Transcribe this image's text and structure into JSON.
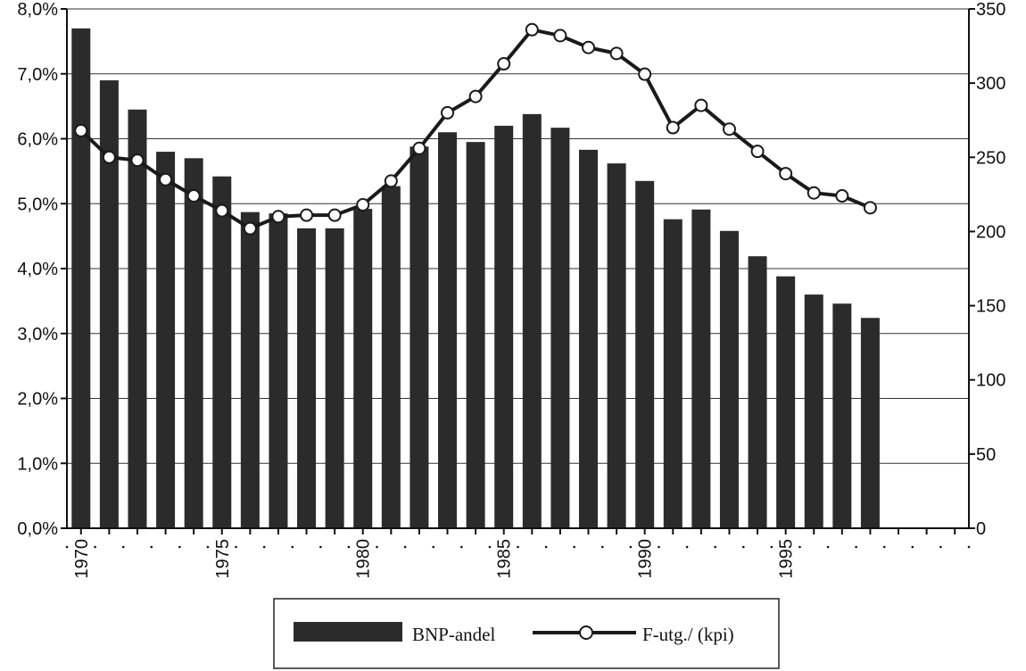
{
  "chart_data": {
    "type": "bar+line",
    "x": [
      1970,
      1971,
      1972,
      1973,
      1974,
      1975,
      1976,
      1977,
      1978,
      1979,
      1980,
      1981,
      1982,
      1983,
      1984,
      1985,
      1986,
      1987,
      1988,
      1989,
      1990,
      1991,
      1992,
      1993,
      1994,
      1995,
      1996,
      1997,
      1998,
      1999,
      2000,
      2001
    ],
    "x_tick_labels": [
      "1970",
      "1975",
      "1980",
      "1985",
      "1990",
      "1995"
    ],
    "series": [
      {
        "name": "BNP-andel",
        "kind": "bar",
        "axis": "left",
        "values": [
          7.7,
          6.9,
          6.45,
          5.8,
          5.7,
          5.42,
          4.87,
          4.85,
          4.62,
          4.62,
          4.92,
          5.27,
          5.88,
          6.1,
          5.95,
          6.2,
          6.38,
          6.17,
          5.83,
          5.62,
          5.35,
          4.76,
          4.91,
          4.58,
          4.19,
          3.88,
          3.6,
          3.46,
          3.24,
          null,
          null,
          null
        ]
      },
      {
        "name": "F-utg./ (kpi)",
        "kind": "line",
        "axis": "right",
        "values": [
          268,
          250,
          248,
          235,
          224,
          214,
          202,
          210,
          211,
          211,
          218,
          234,
          256,
          280,
          291,
          313,
          336,
          332,
          324,
          320,
          306,
          270,
          285,
          269,
          254,
          239,
          226,
          224,
          216,
          null,
          null,
          null
        ]
      }
    ],
    "y_left": {
      "min": 0,
      "max": 8,
      "ticks": [
        "0,0%",
        "1,0%",
        "2,0%",
        "3,0%",
        "4,0%",
        "5,0%",
        "6,0%",
        "7,0%",
        "8,0%"
      ]
    },
    "y_right": {
      "min": 0,
      "max": 350,
      "ticks": [
        "0",
        "50",
        "100",
        "150",
        "200",
        "250",
        "300",
        "350"
      ]
    },
    "grid": "horizontal",
    "legend_position": "bottom-center"
  },
  "colors": {
    "bar": "#2b2b2b",
    "line": "#1a1a1a",
    "marker_fill": "#ffffff",
    "axis": "#111111",
    "grid": "#333333"
  }
}
